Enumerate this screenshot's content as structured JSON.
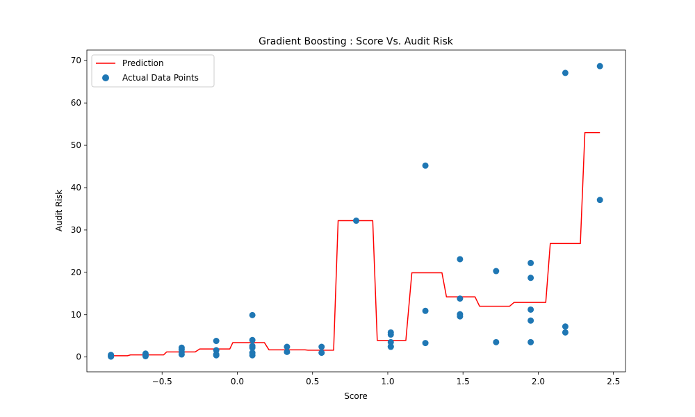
{
  "chart_data": {
    "type": "scatter",
    "title": "Gradient Boosting : Score Vs. Audit Risk",
    "xlabel": "Score",
    "ylabel": "Audit Risk",
    "xlim": [
      -1.0,
      2.58
    ],
    "ylim": [
      -3.5,
      72.5
    ],
    "xticks": [
      -0.5,
      0.0,
      0.5,
      1.0,
      1.5,
      2.0,
      2.5
    ],
    "xtick_labels": [
      "−0.5",
      "0.0",
      "0.5",
      "1.0",
      "1.5",
      "2.0",
      "2.5"
    ],
    "yticks": [
      0,
      10,
      20,
      30,
      40,
      50,
      60,
      70
    ],
    "ytick_labels": [
      "0",
      "10",
      "20",
      "30",
      "40",
      "50",
      "60",
      "70"
    ],
    "grid": false,
    "legend_position": "top-left",
    "series": [
      {
        "name": "Prediction",
        "kind": "line",
        "color": "#ff0000",
        "points": [
          [
            -0.84,
            0.3
          ],
          [
            -0.73,
            0.3
          ],
          [
            -0.71,
            0.5
          ],
          [
            -0.49,
            0.5
          ],
          [
            -0.47,
            1.2
          ],
          [
            -0.28,
            1.2
          ],
          [
            -0.25,
            1.9
          ],
          [
            -0.05,
            1.9
          ],
          [
            -0.03,
            3.4
          ],
          [
            0.18,
            3.4
          ],
          [
            0.21,
            1.7
          ],
          [
            0.45,
            1.7
          ],
          [
            0.47,
            1.6
          ],
          [
            0.64,
            1.6
          ],
          [
            0.67,
            32.2
          ],
          [
            0.9,
            32.2
          ],
          [
            0.93,
            3.9
          ],
          [
            1.12,
            3.9
          ],
          [
            1.16,
            19.9
          ],
          [
            1.36,
            19.9
          ],
          [
            1.39,
            14.2
          ],
          [
            1.58,
            14.2
          ],
          [
            1.61,
            12.0
          ],
          [
            1.81,
            12.0
          ],
          [
            1.84,
            12.9
          ],
          [
            2.05,
            12.9
          ],
          [
            2.08,
            26.8
          ],
          [
            2.28,
            26.8
          ],
          [
            2.31,
            53.0
          ],
          [
            2.41,
            53.0
          ]
        ]
      },
      {
        "name": "Actual Data Points",
        "kind": "scatter",
        "color": "#1f77b4",
        "points": [
          [
            -0.84,
            0.5
          ],
          [
            -0.84,
            0.3
          ],
          [
            -0.84,
            0.2
          ],
          [
            -0.84,
            0.1
          ],
          [
            -0.61,
            0.8
          ],
          [
            -0.61,
            0.4
          ],
          [
            -0.61,
            0.2
          ],
          [
            -0.37,
            2.2
          ],
          [
            -0.37,
            1.8
          ],
          [
            -0.37,
            1.2
          ],
          [
            -0.37,
            0.6
          ],
          [
            -0.14,
            3.8
          ],
          [
            -0.14,
            1.6
          ],
          [
            -0.14,
            0.6
          ],
          [
            -0.14,
            0.4
          ],
          [
            0.1,
            9.9
          ],
          [
            0.1,
            4.0
          ],
          [
            0.1,
            2.6
          ],
          [
            0.1,
            2.2
          ],
          [
            0.1,
            1.0
          ],
          [
            0.1,
            0.4
          ],
          [
            0.33,
            2.4
          ],
          [
            0.33,
            1.2
          ],
          [
            0.56,
            2.4
          ],
          [
            0.56,
            1.0
          ],
          [
            0.79,
            32.2
          ],
          [
            1.02,
            5.8
          ],
          [
            1.02,
            5.3
          ],
          [
            1.02,
            3.5
          ],
          [
            1.02,
            2.5
          ],
          [
            1.02,
            2.4
          ],
          [
            1.25,
            45.2
          ],
          [
            1.25,
            10.9
          ],
          [
            1.25,
            3.3
          ],
          [
            1.48,
            23.1
          ],
          [
            1.48,
            13.8
          ],
          [
            1.48,
            10.1
          ],
          [
            1.48,
            9.6
          ],
          [
            1.72,
            20.3
          ],
          [
            1.72,
            3.5
          ],
          [
            1.95,
            22.2
          ],
          [
            1.95,
            18.7
          ],
          [
            1.95,
            11.2
          ],
          [
            1.95,
            8.6
          ],
          [
            1.95,
            3.5
          ],
          [
            2.18,
            67.1
          ],
          [
            2.18,
            7.2
          ],
          [
            2.18,
            5.8
          ],
          [
            2.41,
            68.7
          ],
          [
            2.41,
            37.1
          ]
        ]
      }
    ]
  }
}
